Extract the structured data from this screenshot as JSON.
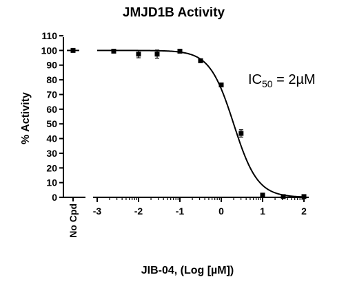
{
  "chart_data": {
    "type": "scatter",
    "title": "JMJD1B Activity",
    "xlabel": "JIB-04, (Log [µM])",
    "ylabel": "% Activity",
    "xlim": [
      -3.3,
      2.1
    ],
    "ylim": [
      0,
      110
    ],
    "x_ticks": [
      -3,
      -2,
      -1,
      0,
      1,
      2
    ],
    "x_tick_labels": [
      "-3",
      "-2",
      "-1",
      "0",
      "1",
      "2"
    ],
    "y_ticks": [
      0,
      10,
      20,
      30,
      40,
      50,
      60,
      70,
      80,
      90,
      100,
      110
    ],
    "y_tick_labels": [
      "0",
      "10",
      "20",
      "30",
      "40",
      "50",
      "60",
      "70",
      "80",
      "90",
      "100",
      "110"
    ],
    "control": {
      "label": "No Cpd",
      "y": 100
    },
    "series": [
      {
        "points": [
          {
            "x": -2.6,
            "y": 99.5,
            "err": 0.8
          },
          {
            "x": -2.0,
            "y": 97.5,
            "err": 2.5
          },
          {
            "x": -1.55,
            "y": 97.5,
            "err": 2.8
          },
          {
            "x": -1.0,
            "y": 99.5,
            "err": 0.8
          },
          {
            "x": -0.5,
            "y": 93.0,
            "err": 0.6
          },
          {
            "x": 0.0,
            "y": 76.5,
            "err": 0.8
          },
          {
            "x": 0.48,
            "y": 43.5,
            "err": 2.5
          },
          {
            "x": 1.0,
            "y": 1.5,
            "err": 0.5
          },
          {
            "x": 1.5,
            "y": 0.5,
            "err": 0.3
          },
          {
            "x": 2.0,
            "y": 0.5,
            "err": 0.3
          }
        ],
        "fit": {
          "model": "sigmoidal dose-response",
          "top": 100,
          "bottom": 0,
          "log_ic50": 0.3,
          "hill": 1.5
        }
      }
    ],
    "annotation": {
      "prefix": "IC",
      "subscript": "50",
      "suffix": " = 2µM"
    }
  }
}
